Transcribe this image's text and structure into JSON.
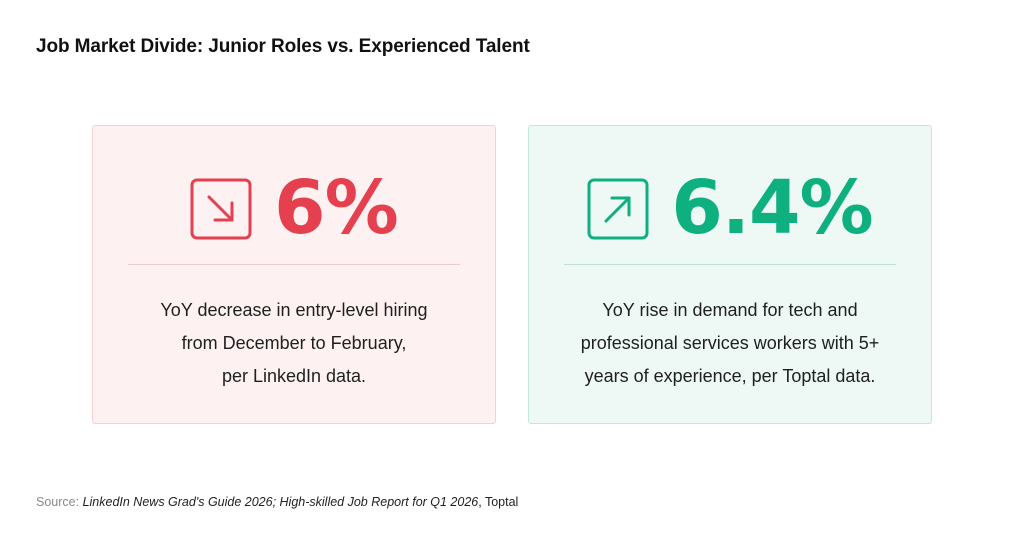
{
  "title": "Job Market Divide: Junior Roles vs. Experienced Talent",
  "colors": {
    "decrease_accent": "#e5404f",
    "increase_accent": "#0eb07f",
    "decrease_card_bg": "#fdf1f1",
    "increase_card_bg": "#eef8f4"
  },
  "cards": [
    {
      "icon": "arrow-down-right-icon",
      "value": "6%",
      "description_lines": [
        "YoY decrease in entry-level hiring",
        "from December to February,",
        "per LinkedIn data."
      ]
    },
    {
      "icon": "arrow-up-right-icon",
      "value": "6.4%",
      "description_lines": [
        "YoY rise in demand for tech and",
        "professional services workers with 5+",
        "years of experience, per Toptal data."
      ]
    }
  ],
  "source": {
    "label": "Source:",
    "italic_text": "LinkedIn News Grad's Guide 2026; High-skilled Job Report for Q1 2026",
    "suffix": ", Toptal"
  }
}
